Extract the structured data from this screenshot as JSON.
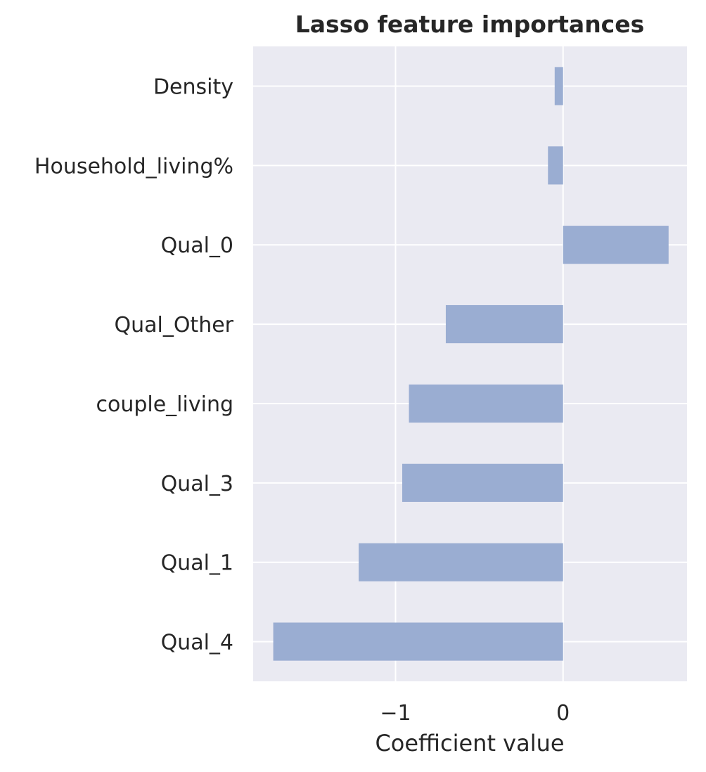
{
  "chart_data": {
    "type": "bar",
    "orientation": "horizontal",
    "title": "Lasso feature importances",
    "xlabel": "Coefficient value",
    "ylabel": "",
    "categories": [
      "Density",
      "Household_living%",
      "Qual_0",
      "Qual_Other",
      "couple_living",
      "Qual_3",
      "Qual_1",
      "Qual_4"
    ],
    "values": [
      -0.05,
      -0.09,
      0.63,
      -0.7,
      -0.92,
      -0.96,
      -1.22,
      -1.73
    ],
    "xlim": [
      -1.85,
      0.74
    ],
    "xticks": [
      -1,
      0
    ],
    "xtick_labels": [
      "−1",
      "0"
    ],
    "grid": true,
    "legend": "none",
    "colors": {
      "background": "#eaeaf2",
      "grid": "#ffffff",
      "bar": "#9aadd2",
      "text": "#262626"
    }
  }
}
